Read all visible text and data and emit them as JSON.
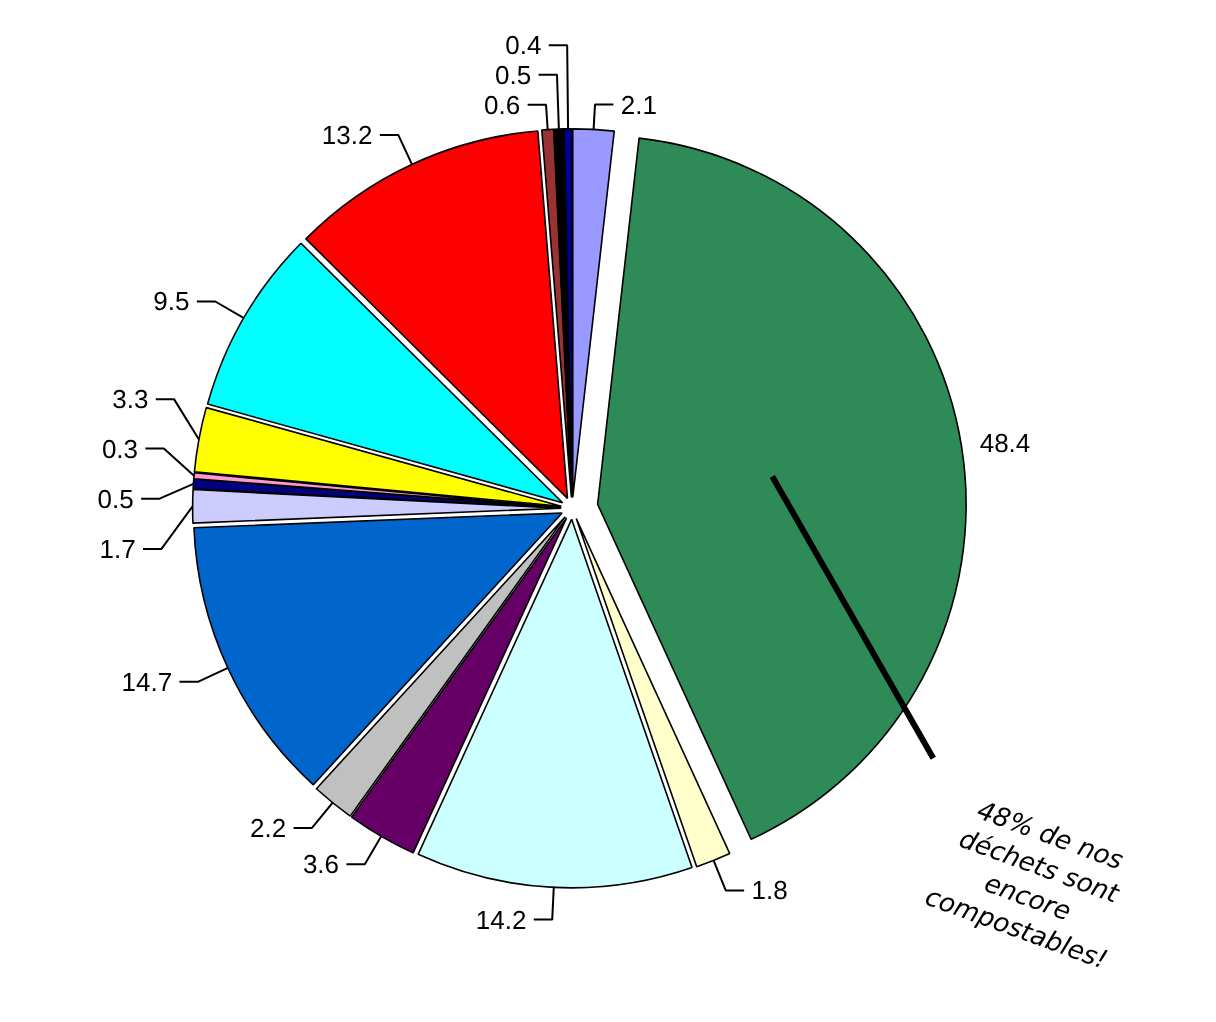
{
  "chart_data": {
    "type": "pie",
    "categories": [
      null,
      null,
      null,
      null,
      null,
      null,
      null,
      null,
      null,
      null,
      null,
      null,
      null,
      null,
      null,
      null
    ],
    "values": [
      2.1,
      48.4,
      1.8,
      14.2,
      3.6,
      2.2,
      14.7,
      1.7,
      0.5,
      0.3,
      3.3,
      9.5,
      13.2,
      0.6,
      0.5,
      0.4
    ],
    "colors": [
      "#9999ff",
      "#2e8b57",
      "#ffffcc",
      "#ccffff",
      "#660066",
      "#c0c0c0",
      "#0066cc",
      "#ccccff",
      "#000080",
      "#ff99cc",
      "#ffff00",
      "#00ffff",
      "#ff0000",
      "#993333",
      "#000000",
      "#000099"
    ],
    "data_labels": true,
    "annotations": [
      "48% de nos\ndéchets sont\nencore\ncompostables!"
    ]
  }
}
